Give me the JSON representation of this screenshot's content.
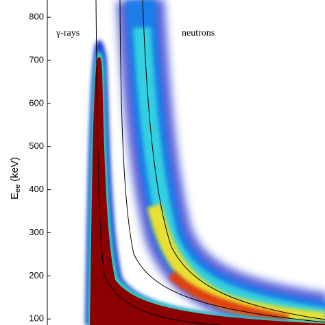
{
  "chart_data": {
    "type": "density",
    "ylabel_symbol": "E",
    "ylabel_subscript": "ee",
    "ylabel_unit": "(keV)",
    "ylim": [
      86,
      840
    ],
    "yticks": [
      100,
      200,
      300,
      400,
      500,
      600,
      700,
      800
    ],
    "annotations": [
      "γ-rays",
      "neutrons"
    ]
  }
}
